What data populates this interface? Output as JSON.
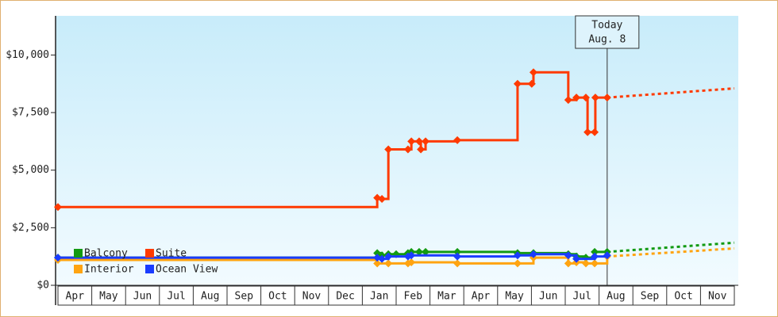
{
  "chart_data": {
    "type": "step-line",
    "categories": [
      "Apr",
      "May",
      "Jun",
      "Jul",
      "Aug",
      "Sep",
      "Oct",
      "Nov",
      "Dec",
      "Jan",
      "Feb",
      "Mar",
      "Apr",
      "May",
      "Jun",
      "Jul",
      "Aug",
      "Sep",
      "Oct",
      "Nov"
    ],
    "xlim": [
      0,
      20
    ],
    "ylim": [
      0,
      11700
    ],
    "yticks": [
      {
        "value": 0,
        "label": "$0"
      },
      {
        "value": 2500,
        "label": "$2,500"
      },
      {
        "value": 5000,
        "label": "$5,000"
      },
      {
        "value": 7500,
        "label": "$7,500"
      },
      {
        "value": 10000,
        "label": "$10,000"
      }
    ],
    "today": {
      "x": 16.24,
      "label": [
        "Today",
        "Aug. 8"
      ]
    },
    "legend": "lower-left",
    "series": [
      {
        "name": "Balcony",
        "color": "#129a12",
        "x": [
          0,
          9.44,
          9.58,
          9.77,
          10.0,
          10.35,
          10.45,
          10.68,
          10.87,
          11.81,
          13.59,
          14.06,
          15.09,
          15.33,
          15.61,
          15.87,
          16.24
        ],
        "values": [
          1200,
          1400,
          1300,
          1350,
          1350,
          1400,
          1450,
          1450,
          1450,
          1450,
          1400,
          1400,
          1350,
          1250,
          1200,
          1450,
          1450
        ],
        "forecast": {
          "x": [
            16.24,
            20
          ],
          "values": [
            1450,
            1850
          ]
        }
      },
      {
        "name": "Suite",
        "color": "#ff3a00",
        "x": [
          0,
          9.44,
          9.58,
          9.77,
          10.35,
          10.45,
          10.68,
          10.73,
          10.87,
          11.81,
          13.59,
          14.01,
          14.06,
          15.09,
          15.33,
          15.61,
          15.66,
          15.87,
          15.89,
          16.24
        ],
        "values": [
          3400,
          3800,
          3750,
          5900,
          5900,
          6250,
          6250,
          5900,
          6250,
          6300,
          8750,
          8750,
          9250,
          8050,
          8150,
          8150,
          6650,
          6650,
          8150,
          8150
        ],
        "forecast": {
          "x": [
            16.24,
            20
          ],
          "values": [
            8150,
            8550
          ]
        }
      },
      {
        "name": "Interior",
        "color": "#ffa411",
        "x": [
          0,
          9.44,
          9.77,
          10.35,
          10.45,
          11.81,
          13.59,
          14.06,
          15.09,
          15.33,
          15.61,
          15.87,
          16.24
        ],
        "values": [
          1100,
          950,
          950,
          950,
          1000,
          950,
          950,
          1200,
          950,
          1000,
          950,
          950,
          1250
        ],
        "forecast": {
          "x": [
            16.24,
            20
          ],
          "values": [
            1250,
            1600
          ]
        }
      },
      {
        "name": "Ocean View",
        "color": "#1a3cff",
        "x": [
          0,
          9.44,
          9.58,
          9.77,
          10.35,
          10.45,
          11.81,
          13.59,
          14.06,
          15.09,
          15.33,
          15.87,
          16.24
        ],
        "values": [
          1200,
          1200,
          1150,
          1250,
          1250,
          1300,
          1250,
          1300,
          1350,
          1300,
          1150,
          1250,
          1300
        ]
      }
    ]
  }
}
